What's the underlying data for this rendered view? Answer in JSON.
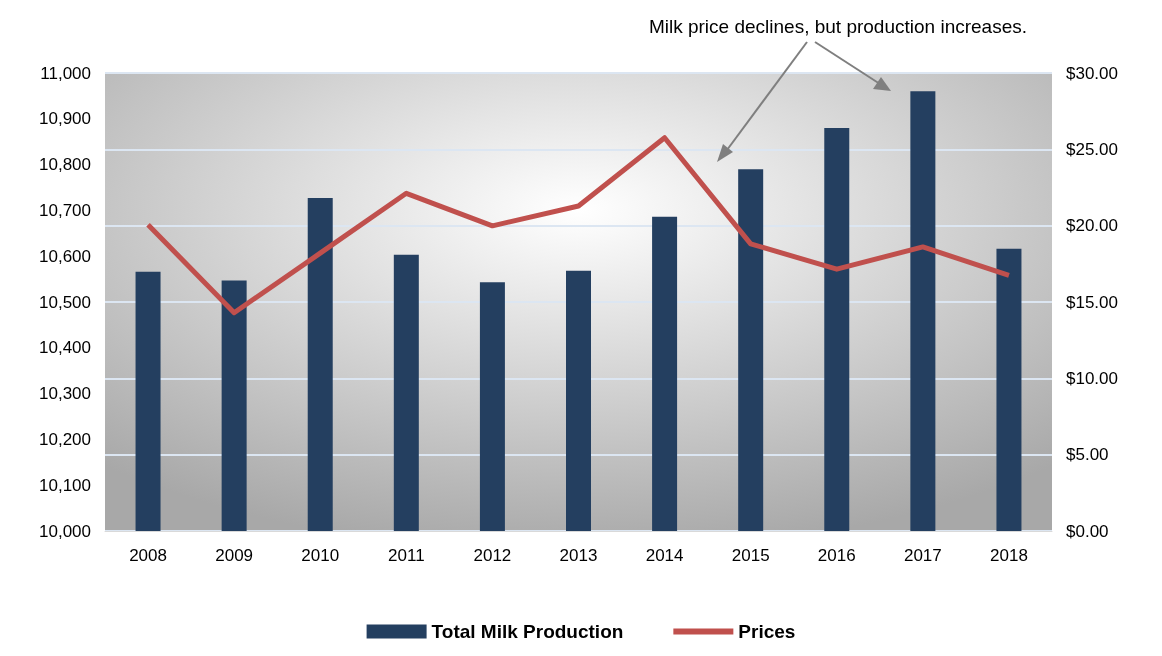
{
  "chart_data": {
    "type": "bar",
    "categories": [
      "2008",
      "2009",
      "2010",
      "2011",
      "2012",
      "2013",
      "2014",
      "2015",
      "2016",
      "2017",
      "2018"
    ],
    "series": [
      {
        "name": "Total Milk Production",
        "color": "#243f60",
        "values": [
          10566,
          10547,
          10727,
          10603,
          10543,
          10568,
          10686,
          10790,
          10880,
          10960,
          10616
        ]
      },
      {
        "name": "Prices",
        "type": "line",
        "axis": "y2",
        "color": "#c0504d",
        "values": [
          20.06,
          14.3,
          18.2,
          22.12,
          19.99,
          21.29,
          25.76,
          18.81,
          17.15,
          18.61,
          16.74
        ]
      }
    ],
    "ylim": [
      10000,
      11000
    ],
    "yticks": [
      {
        "value": 10000,
        "label": "10,000"
      },
      {
        "value": 10100,
        "label": "10,100"
      },
      {
        "value": 10200,
        "label": "10,200"
      },
      {
        "value": 10300,
        "label": "10,300"
      },
      {
        "value": 10400,
        "label": "10,400"
      },
      {
        "value": 10500,
        "label": "10,500"
      },
      {
        "value": 10600,
        "label": "10,600"
      },
      {
        "value": 10700,
        "label": "10,700"
      },
      {
        "value": 10800,
        "label": "10,800"
      },
      {
        "value": 10900,
        "label": "10,900"
      },
      {
        "value": 11000,
        "label": "11,000"
      }
    ],
    "y2lim": [
      0,
      30
    ],
    "y2ticks": [
      {
        "value": 0,
        "label": "$0.00"
      },
      {
        "value": 5,
        "label": "$5.00"
      },
      {
        "value": 10,
        "label": "$10.00"
      },
      {
        "value": 15,
        "label": "$15.00"
      },
      {
        "value": 20,
        "label": "$20.00"
      },
      {
        "value": 25,
        "label": "$25.00"
      },
      {
        "value": 30,
        "label": "$30.00"
      }
    ],
    "grid": "y2",
    "legend": "bottom",
    "marker": "none",
    "annotations": [
      "Milk price declines, but production increases."
    ]
  }
}
